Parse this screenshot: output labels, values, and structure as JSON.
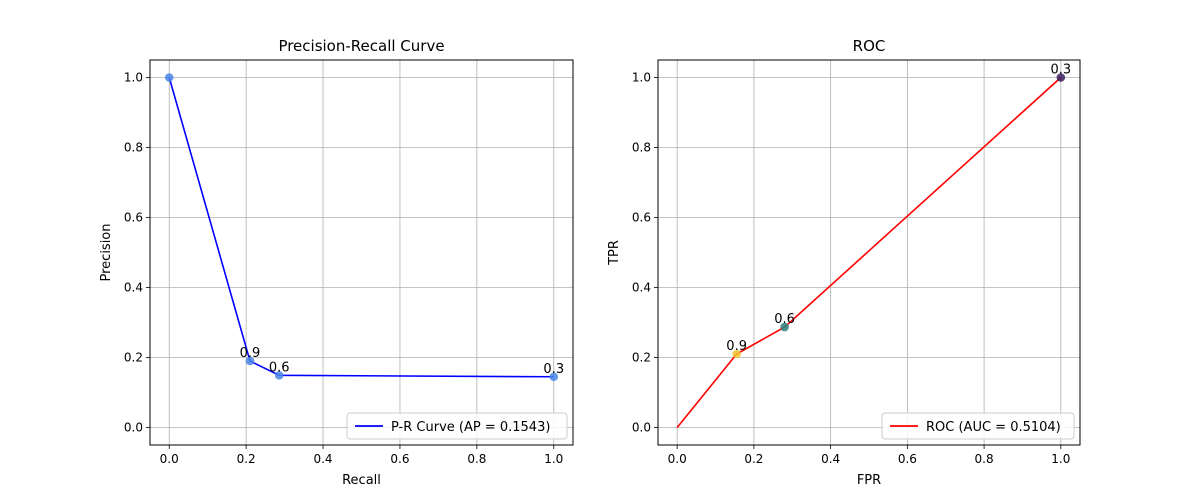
{
  "chart_data": [
    {
      "type": "line",
      "title": "Precision-Recall Curve",
      "xlabel": "Recall",
      "ylabel": "Precision",
      "xlim": [
        -0.05,
        1.05
      ],
      "ylim": [
        -0.05,
        1.05
      ],
      "xticks": [
        "0.0",
        "0.2",
        "0.4",
        "0.6",
        "0.8",
        "1.0"
      ],
      "yticks": [
        "0.0",
        "0.2",
        "0.4",
        "0.6",
        "0.8",
        "1.0"
      ],
      "grid": true,
      "legend_position": "lower-right",
      "series": [
        {
          "name": "P-R Curve (AP = 0.1543)",
          "color": "#0000ff",
          "x": [
            0.0,
            0.21,
            0.286,
            1.0
          ],
          "y": [
            1.0,
            0.19,
            0.149,
            0.145
          ]
        }
      ],
      "points": [
        {
          "x": 0.0,
          "y": 1.0,
          "label": "",
          "color": "#4a86e8"
        },
        {
          "x": 0.21,
          "y": 0.19,
          "label": "0.9",
          "color": "#4a86e8"
        },
        {
          "x": 0.286,
          "y": 0.149,
          "label": "0.6",
          "color": "#4a86e8"
        },
        {
          "x": 1.0,
          "y": 0.145,
          "label": "0.3",
          "color": "#4a86e8"
        }
      ]
    },
    {
      "type": "line",
      "title": "ROC",
      "xlabel": "FPR",
      "ylabel": "TPR",
      "xlim": [
        -0.05,
        1.05
      ],
      "ylim": [
        -0.05,
        1.05
      ],
      "xticks": [
        "0.0",
        "0.2",
        "0.4",
        "0.6",
        "0.8",
        "1.0"
      ],
      "yticks": [
        "0.0",
        "0.2",
        "0.4",
        "0.6",
        "0.8",
        "1.0"
      ],
      "grid": true,
      "legend_position": "lower-right",
      "series": [
        {
          "name": "ROC (AUC = 0.5104)",
          "color": "#ff0000",
          "x": [
            0.0,
            0.155,
            0.28,
            1.0
          ],
          "y": [
            0.0,
            0.21,
            0.287,
            1.0
          ]
        }
      ],
      "points": [
        {
          "x": 0.155,
          "y": 0.21,
          "label": "0.9",
          "color": "#f4c430"
        },
        {
          "x": 0.28,
          "y": 0.287,
          "label": "0.6",
          "color": "#2a7f7f"
        },
        {
          "x": 1.0,
          "y": 1.0,
          "label": "0.3",
          "color": "#3b1f5e"
        }
      ]
    }
  ]
}
